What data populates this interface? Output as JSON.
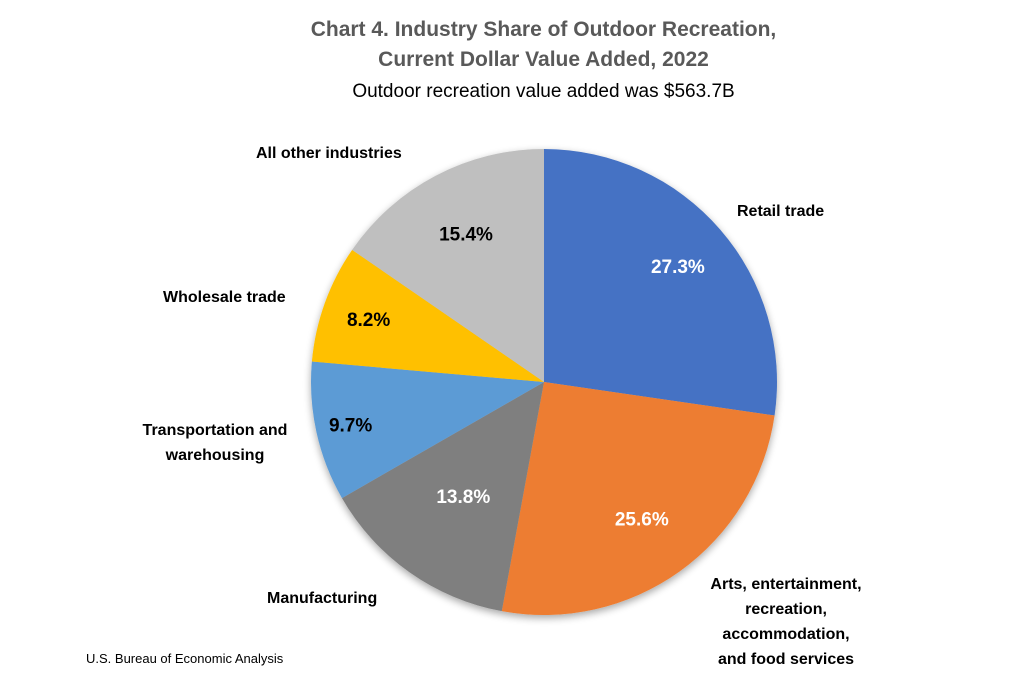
{
  "chart_data": {
    "type": "pie",
    "title_line1": "Chart 4. Industry Share of Outdoor Recreation,",
    "title_line2": "Current Dollar Value Added, 2022",
    "subtitle": "Outdoor recreation value added was $563.7B",
    "unit": "%",
    "start_angle_deg": 0,
    "direction": "clockwise",
    "slices": [
      {
        "label": "Retail trade",
        "value": 27.3,
        "value_label": "27.3%",
        "color": "#4472C4",
        "value_text_color": "#FFFFFF"
      },
      {
        "label": "Arts, entertainment, recreation, accommodation, and food services",
        "value": 25.6,
        "value_label": "25.6%",
        "color": "#ED7D31",
        "value_text_color": "#FFFFFF"
      },
      {
        "label": "Manufacturing",
        "value": 13.8,
        "value_label": "13.8%",
        "color": "#7F7F7F",
        "value_text_color": "#FFFFFF"
      },
      {
        "label": "Transportation and warehousing",
        "value": 9.7,
        "value_label": "9.7%",
        "color": "#5B9BD5",
        "value_text_color": "#000000"
      },
      {
        "label": "Wholesale trade",
        "value": 8.2,
        "value_label": "8.2%",
        "color": "#FFC000",
        "value_text_color": "#000000"
      },
      {
        "label": "All other industries",
        "value": 15.4,
        "value_label": "15.4%",
        "color": "#BFBFBF",
        "value_text_color": "#000000"
      }
    ],
    "label_lines": {
      "retail": [
        "Retail trade"
      ],
      "arts": [
        "Arts, entertainment,",
        "recreation,",
        "accommodation,",
        "and food services"
      ],
      "manufacturing": [
        "Manufacturing"
      ],
      "transport": [
        "Transportation and",
        "warehousing"
      ],
      "wholesale": [
        "Wholesale trade"
      ],
      "other": [
        "All other industries"
      ]
    }
  },
  "source": "U.S. Bureau of Economic Analysis"
}
